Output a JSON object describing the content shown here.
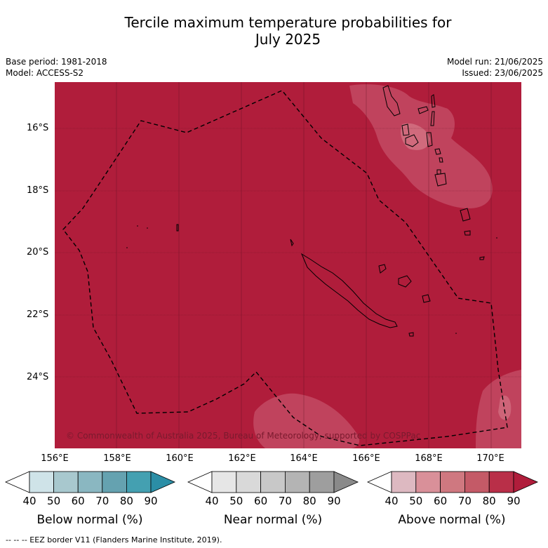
{
  "title_line1": "Tercile maximum temperature probabilities for",
  "title_line2": "July 2025",
  "base_period": "Base period: 1981-2018",
  "model": "Model: ACCESS-S2",
  "model_run": "Model run: 21/06/2025",
  "issued": "Issued: 23/06/2025",
  "copyright": "© Commonwealth of Australia 2025, Bureau of Meteorology, supported by COSPPac",
  "footer": "--  --  -- EEZ border V11 (Flanders Marine Institute, 2019).",
  "lat_labels": [
    "16°S",
    "18°S",
    "20°S",
    "22°S",
    "24°S"
  ],
  "lon_labels": [
    "156°E",
    "158°E",
    "160°E",
    "162°E",
    "164°E",
    "166°E",
    "168°E",
    "170°E"
  ],
  "colorbars": [
    {
      "label": "Below normal (%)",
      "ticks": [
        "40",
        "50",
        "60",
        "70",
        "80",
        "90"
      ],
      "colors": [
        "#cfe3e8",
        "#a8c8ce",
        "#8ab7c1",
        "#65a2b0",
        "#44a0b1",
        "#2b8ea6"
      ]
    },
    {
      "label": "Near normal (%)",
      "ticks": [
        "40",
        "50",
        "60",
        "70",
        "80",
        "90"
      ],
      "colors": [
        "#e6e6e6",
        "#d9d9d9",
        "#c8c8c8",
        "#b4b4b4",
        "#9e9e9e",
        "#8a8a8a"
      ]
    },
    {
      "label": "Above normal (%)",
      "ticks": [
        "40",
        "50",
        "60",
        "70",
        "80",
        "90"
      ],
      "colors": [
        "#ddb9c1",
        "#d99099",
        "#cf7880",
        "#c45a67",
        "#b92f48",
        "#b01d3b"
      ]
    }
  ],
  "colors": {
    "above_90": "#b01d3b",
    "above_80": "#c0435d",
    "coast": "#000000"
  }
}
